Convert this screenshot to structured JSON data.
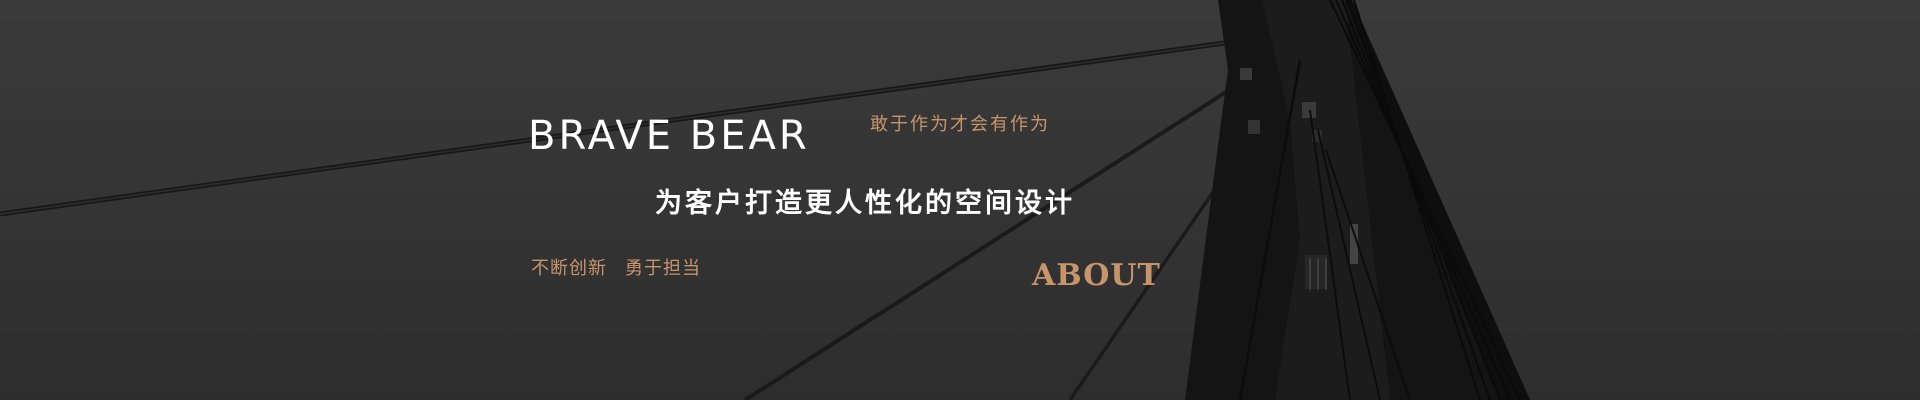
{
  "hero": {
    "brand_title": "BRAVE BEAR",
    "slogan": "敢于作为才会有作为",
    "headline": "为客户打造更人性化的空间设计",
    "values": [
      "不断创新",
      "勇于担当"
    ],
    "about_link": "ABOUT"
  },
  "background": {
    "description_icon": "cable-stayed-bridge-pylon",
    "accent_color": "#c8956a",
    "bg_color": "#363636",
    "text_color": "#ffffff"
  }
}
